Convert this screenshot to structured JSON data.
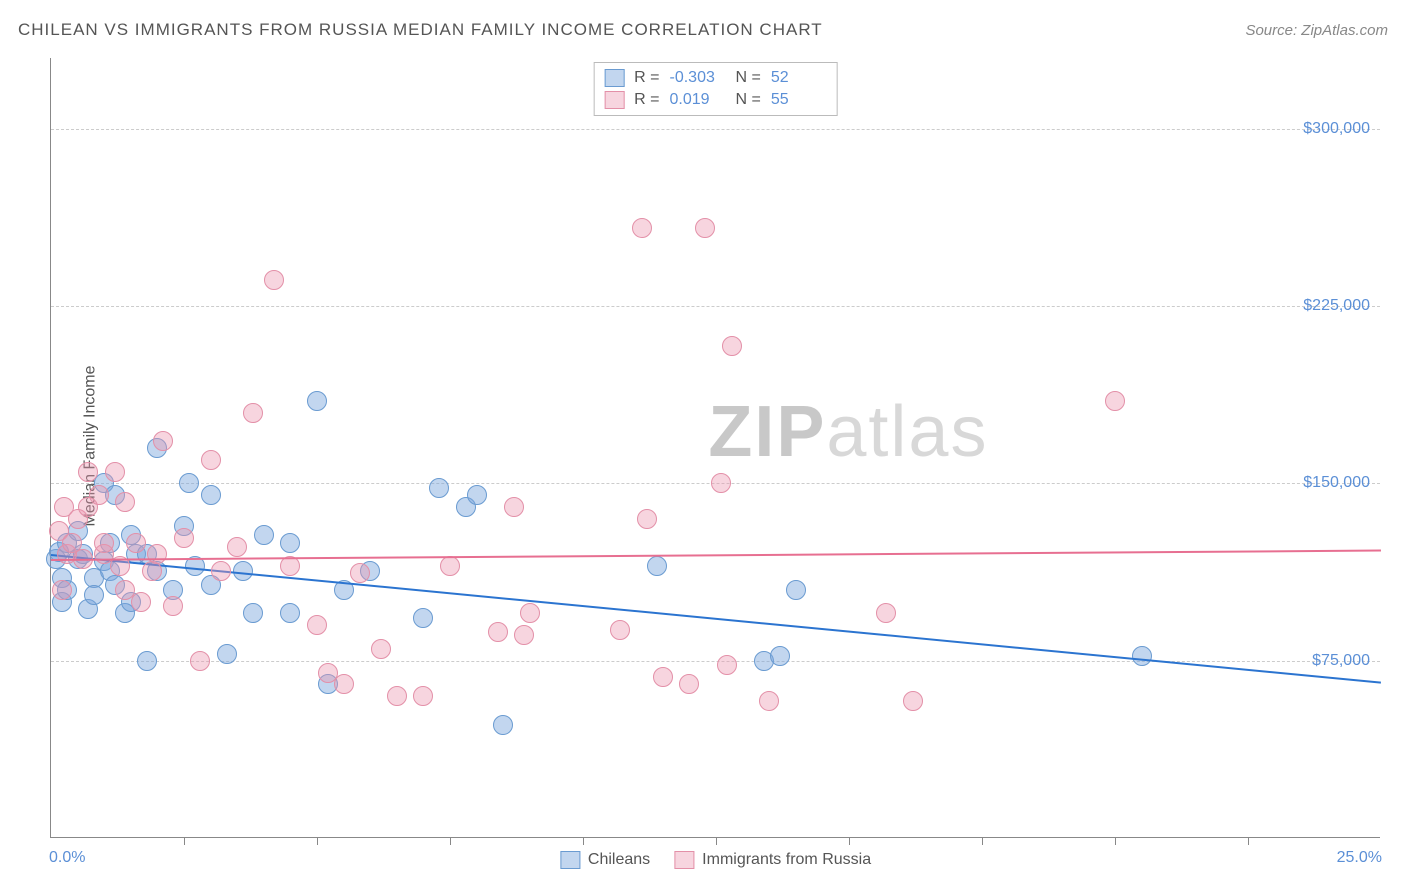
{
  "header": {
    "title": "CHILEAN VS IMMIGRANTS FROM RUSSIA MEDIAN FAMILY INCOME CORRELATION CHART",
    "source": "Source: ZipAtlas.com"
  },
  "chart": {
    "type": "scatter",
    "ylabel": "Median Family Income",
    "watermark_bold": "ZIP",
    "watermark_thin": "atlas",
    "xlim": [
      0,
      25
    ],
    "ylim": [
      0,
      330000
    ],
    "x_start_label": "0.0%",
    "x_end_label": "25.0%",
    "xticks": [
      2.5,
      5,
      7.5,
      10,
      12.5,
      15,
      17.5,
      20,
      22.5
    ],
    "yticks": [
      {
        "v": 75000,
        "label": "$75,000"
      },
      {
        "v": 150000,
        "label": "$150,000"
      },
      {
        "v": 225000,
        "label": "$225,000"
      },
      {
        "v": 300000,
        "label": "$300,000"
      }
    ],
    "grid_color": "#cccccc",
    "background_color": "#ffffff",
    "series": [
      {
        "name": "Chileans",
        "fill": "rgba(120,165,220,0.45)",
        "stroke": "#6a9bd1",
        "trend_color": "#2b74d0",
        "R": "-0.303",
        "N": "52",
        "trend": {
          "x1": 0,
          "y1": 120000,
          "x2": 25,
          "y2": 66000
        },
        "marker_radius": 10,
        "points": [
          [
            0.1,
            118000
          ],
          [
            0.15,
            121000
          ],
          [
            0.2,
            110000
          ],
          [
            0.2,
            100000
          ],
          [
            0.3,
            125000
          ],
          [
            0.3,
            105000
          ],
          [
            0.5,
            118000
          ],
          [
            0.5,
            130000
          ],
          [
            0.6,
            120000
          ],
          [
            0.7,
            97000
          ],
          [
            0.8,
            110000
          ],
          [
            0.8,
            103000
          ],
          [
            1.0,
            150000
          ],
          [
            1.0,
            117000
          ],
          [
            1.1,
            125000
          ],
          [
            1.1,
            113000
          ],
          [
            1.2,
            107000
          ],
          [
            1.2,
            145000
          ],
          [
            1.4,
            95000
          ],
          [
            1.5,
            100000
          ],
          [
            1.5,
            128000
          ],
          [
            1.6,
            120000
          ],
          [
            1.8,
            120000
          ],
          [
            1.8,
            75000
          ],
          [
            2.0,
            165000
          ],
          [
            2.0,
            113000
          ],
          [
            2.3,
            105000
          ],
          [
            2.5,
            132000
          ],
          [
            2.6,
            150000
          ],
          [
            2.7,
            115000
          ],
          [
            3.0,
            145000
          ],
          [
            3.0,
            107000
          ],
          [
            3.3,
            78000
          ],
          [
            3.6,
            113000
          ],
          [
            3.8,
            95000
          ],
          [
            4.0,
            128000
          ],
          [
            4.5,
            95000
          ],
          [
            4.5,
            125000
          ],
          [
            5.0,
            185000
          ],
          [
            5.2,
            65000
          ],
          [
            5.5,
            105000
          ],
          [
            6.0,
            113000
          ],
          [
            7.0,
            93000
          ],
          [
            7.3,
            148000
          ],
          [
            7.8,
            140000
          ],
          [
            8.0,
            145000
          ],
          [
            8.5,
            48000
          ],
          [
            11.4,
            115000
          ],
          [
            13.4,
            75000
          ],
          [
            13.7,
            77000
          ],
          [
            14.0,
            105000
          ],
          [
            20.5,
            77000
          ]
        ]
      },
      {
        "name": "Immigrants from Russia",
        "fill": "rgba(235,150,175,0.40)",
        "stroke": "#e390a8",
        "trend_color": "#e76f91",
        "R": "0.019",
        "N": "55",
        "trend": {
          "x1": 0,
          "y1": 118000,
          "x2": 25,
          "y2": 122000
        },
        "marker_radius": 10,
        "points": [
          [
            0.15,
            130000
          ],
          [
            0.2,
            105000
          ],
          [
            0.25,
            140000
          ],
          [
            0.3,
            120000
          ],
          [
            0.4,
            125000
          ],
          [
            0.5,
            135000
          ],
          [
            0.6,
            118000
          ],
          [
            0.7,
            140000
          ],
          [
            0.7,
            155000
          ],
          [
            0.9,
            145000
          ],
          [
            1.0,
            120000
          ],
          [
            1.0,
            125000
          ],
          [
            1.2,
            155000
          ],
          [
            1.3,
            115000
          ],
          [
            1.4,
            142000
          ],
          [
            1.4,
            105000
          ],
          [
            1.6,
            125000
          ],
          [
            1.7,
            100000
          ],
          [
            1.9,
            113000
          ],
          [
            2.0,
            120000
          ],
          [
            2.1,
            168000
          ],
          [
            2.3,
            98000
          ],
          [
            2.5,
            127000
          ],
          [
            2.8,
            75000
          ],
          [
            3.0,
            160000
          ],
          [
            3.2,
            113000
          ],
          [
            3.5,
            123000
          ],
          [
            3.8,
            180000
          ],
          [
            4.2,
            236000
          ],
          [
            4.5,
            115000
          ],
          [
            5.0,
            90000
          ],
          [
            5.2,
            70000
          ],
          [
            5.5,
            65000
          ],
          [
            5.8,
            112000
          ],
          [
            6.2,
            80000
          ],
          [
            6.5,
            60000
          ],
          [
            7.0,
            60000
          ],
          [
            7.5,
            115000
          ],
          [
            8.4,
            87000
          ],
          [
            8.7,
            140000
          ],
          [
            9.0,
            95000
          ],
          [
            8.9,
            86000
          ],
          [
            10.7,
            88000
          ],
          [
            11.1,
            258000
          ],
          [
            11.5,
            68000
          ],
          [
            11.2,
            135000
          ],
          [
            12.0,
            65000
          ],
          [
            12.3,
            258000
          ],
          [
            12.6,
            150000
          ],
          [
            12.7,
            73000
          ],
          [
            12.8,
            208000
          ],
          [
            13.5,
            58000
          ],
          [
            15.7,
            95000
          ],
          [
            16.2,
            58000
          ],
          [
            20.0,
            185000
          ]
        ]
      }
    ]
  }
}
